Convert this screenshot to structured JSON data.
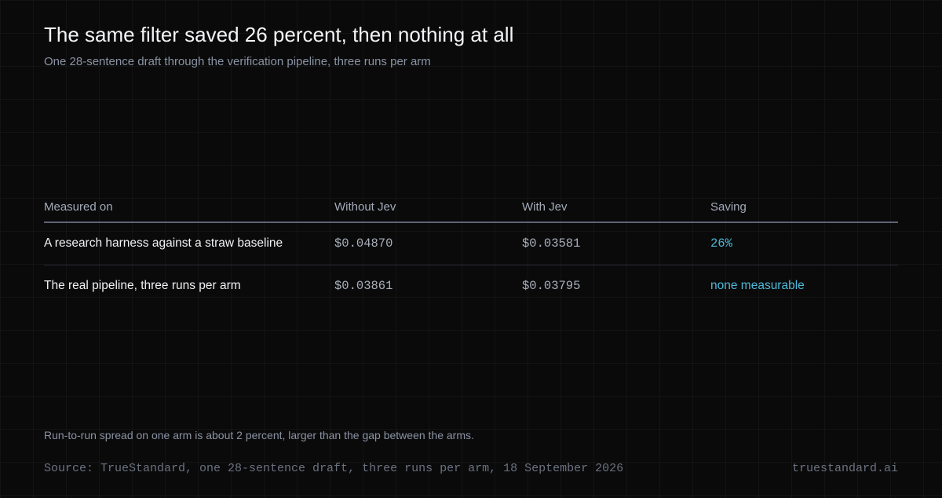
{
  "header": {
    "title": "The same filter saved 26 percent, then nothing at all",
    "subtitle": "One 28-sentence draft through the verification pipeline, three runs per arm"
  },
  "table": {
    "columns": [
      "Measured on",
      "Without Jev",
      "With Jev",
      "Saving"
    ],
    "rows": [
      [
        "A research harness against a straw baseline",
        "$0.04870",
        "$0.03581",
        "26%"
      ],
      [
        "The real pipeline, three runs per arm",
        "$0.03861",
        "$0.03795",
        "none measurable"
      ]
    ]
  },
  "note": "Run-to-run spread on one arm is about 2 percent, larger than the gap between the arms.",
  "footer": {
    "source": "Source: TrueStandard, one 28-sentence draft, three runs per arm, 18 September 2026",
    "site": "truestandard.ai"
  }
}
